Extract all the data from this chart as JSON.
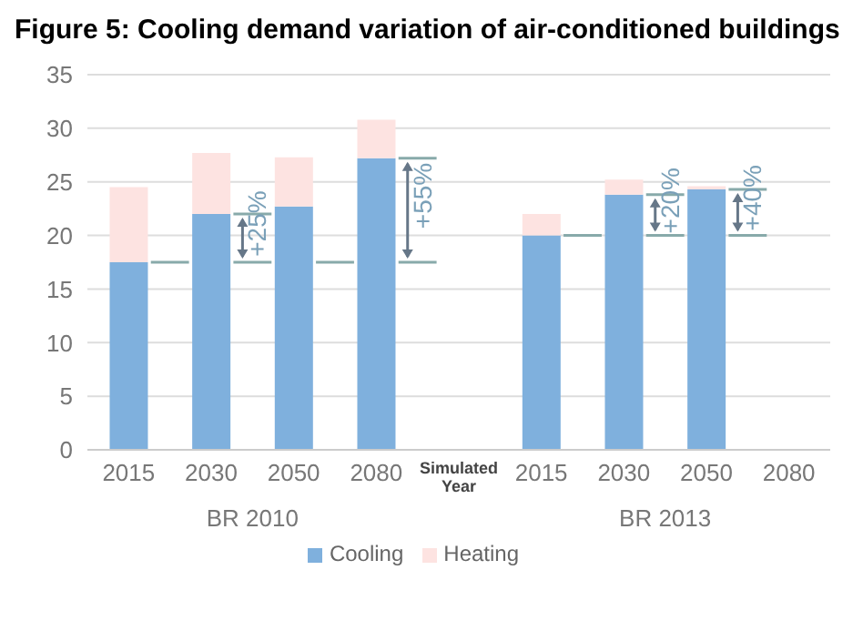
{
  "chart_data": {
    "type": "bar",
    "title": "Figure 5: Cooling demand variation of air-conditioned buildings",
    "categories": [
      "2015",
      "2030",
      "2050",
      "2080",
      null,
      "2015",
      "2030",
      "2050",
      "2080"
    ],
    "series": [
      {
        "name": "Cooling",
        "color": "#7fb0dd",
        "values": [
          17.5,
          22,
          22.7,
          27.2,
          null,
          20,
          23.8,
          24.3,
          null
        ]
      },
      {
        "name": "Heating",
        "color": "#fde3e1",
        "values": [
          7,
          5.7,
          4.6,
          3.6,
          null,
          2,
          1.4,
          0.3,
          null
        ]
      }
    ],
    "stacked": true,
    "ylim": [
      0,
      35
    ],
    "yticks": [
      0,
      5,
      10,
      15,
      20,
      25,
      30,
      35
    ],
    "grid": "y",
    "legend": "bottom",
    "annotations": [
      "+25%",
      "+55%",
      "+20%",
      "+40%",
      "Simulated Year",
      "BR 2010",
      "BR 2013"
    ]
  }
}
